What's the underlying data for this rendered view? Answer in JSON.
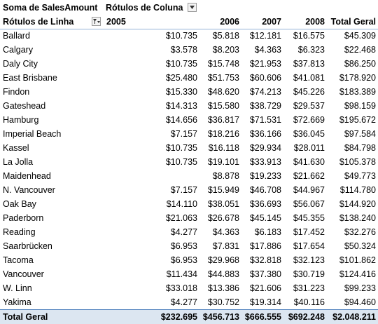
{
  "pivot": {
    "data_field_label": "Soma de SalesAmount",
    "column_labels_caption": "Rótulos de Coluna",
    "row_labels_caption": "Rótulos de Linha",
    "years": [
      "2005",
      "2006",
      "2007",
      "2008"
    ],
    "grand_total_header": "Total Geral",
    "rows": [
      {
        "city": "Ballard",
        "v2005": "$10.735",
        "v2006": "$5.818",
        "v2007": "$12.181",
        "v2008": "$16.575",
        "total": "$45.309"
      },
      {
        "city": "Calgary",
        "v2005": "$3.578",
        "v2006": "$8.203",
        "v2007": "$4.363",
        "v2008": "$6.323",
        "total": "$22.468"
      },
      {
        "city": "Daly City",
        "v2005": "$10.735",
        "v2006": "$15.748",
        "v2007": "$21.953",
        "v2008": "$37.813",
        "total": "$86.250"
      },
      {
        "city": "East Brisbane",
        "v2005": "$25.480",
        "v2006": "$51.753",
        "v2007": "$60.606",
        "v2008": "$41.081",
        "total": "$178.920"
      },
      {
        "city": "Findon",
        "v2005": "$15.330",
        "v2006": "$48.620",
        "v2007": "$74.213",
        "v2008": "$45.226",
        "total": "$183.389"
      },
      {
        "city": "Gateshead",
        "v2005": "$14.313",
        "v2006": "$15.580",
        "v2007": "$38.729",
        "v2008": "$29.537",
        "total": "$98.159"
      },
      {
        "city": "Hamburg",
        "v2005": "$14.656",
        "v2006": "$36.817",
        "v2007": "$71.531",
        "v2008": "$72.669",
        "total": "$195.672"
      },
      {
        "city": "Imperial Beach",
        "v2005": "$7.157",
        "v2006": "$18.216",
        "v2007": "$36.166",
        "v2008": "$36.045",
        "total": "$97.584"
      },
      {
        "city": "Kassel",
        "v2005": "$10.735",
        "v2006": "$16.118",
        "v2007": "$29.934",
        "v2008": "$28.011",
        "total": "$84.798"
      },
      {
        "city": "La Jolla",
        "v2005": "$10.735",
        "v2006": "$19.101",
        "v2007": "$33.913",
        "v2008": "$41.630",
        "total": "$105.378"
      },
      {
        "city": "Maidenhead",
        "v2005": "",
        "v2006": "$8.878",
        "v2007": "$19.233",
        "v2008": "$21.662",
        "total": "$49.773"
      },
      {
        "city": "N. Vancouver",
        "v2005": "$7.157",
        "v2006": "$15.949",
        "v2007": "$46.708",
        "v2008": "$44.967",
        "total": "$114.780"
      },
      {
        "city": "Oak Bay",
        "v2005": "$14.110",
        "v2006": "$38.051",
        "v2007": "$36.693",
        "v2008": "$56.067",
        "total": "$144.920"
      },
      {
        "city": "Paderborn",
        "v2005": "$21.063",
        "v2006": "$26.678",
        "v2007": "$45.145",
        "v2008": "$45.355",
        "total": "$138.240"
      },
      {
        "city": "Reading",
        "v2005": "$4.277",
        "v2006": "$4.363",
        "v2007": "$6.183",
        "v2008": "$17.452",
        "total": "$32.276"
      },
      {
        "city": "Saarbrücken",
        "v2005": "$6.953",
        "v2006": "$7.831",
        "v2007": "$17.886",
        "v2008": "$17.654",
        "total": "$50.324"
      },
      {
        "city": "Tacoma",
        "v2005": "$6.953",
        "v2006": "$29.968",
        "v2007": "$32.818",
        "v2008": "$32.123",
        "total": "$101.862"
      },
      {
        "city": "Vancouver",
        "v2005": "$11.434",
        "v2006": "$44.883",
        "v2007": "$37.380",
        "v2008": "$30.719",
        "total": "$124.416"
      },
      {
        "city": "W. Linn",
        "v2005": "$33.018",
        "v2006": "$13.386",
        "v2007": "$21.606",
        "v2008": "$31.223",
        "total": "$99.233"
      },
      {
        "city": "Yakima",
        "v2005": "$4.277",
        "v2006": "$30.752",
        "v2007": "$19.314",
        "v2008": "$40.116",
        "total": "$94.460"
      }
    ],
    "grand_total": {
      "label": "Total Geral",
      "v2005": "$232.695",
      "v2006": "$456.713",
      "v2007": "$666.555",
      "v2008": "$692.248",
      "total": "$2.048.211"
    },
    "icons": {
      "column_filter": "dropdown-arrow-icon",
      "row_filter": "filter-dropdown-icon"
    },
    "colors": {
      "header_border": "#95b3d7",
      "total_fill": "#dce6f1",
      "total_border": "#4f81bd"
    }
  }
}
